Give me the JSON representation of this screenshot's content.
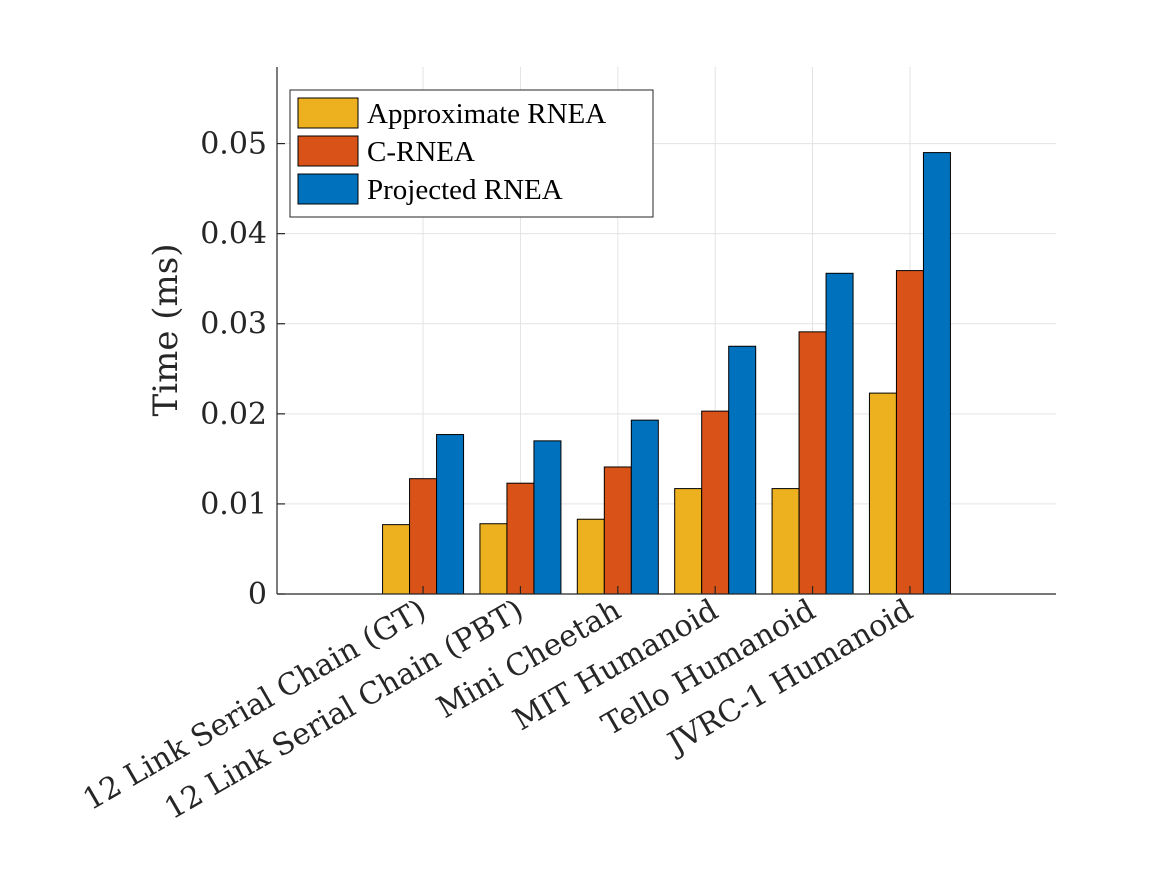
{
  "chart_data": {
    "type": "bar",
    "title": "",
    "xlabel": "",
    "ylabel": "Time (ms)",
    "ylim": [
      0,
      0.0585
    ],
    "yticks": [
      0,
      0.01,
      0.02,
      0.03,
      0.04,
      0.05
    ],
    "ytick_labels": [
      "0",
      "0.01",
      "0.02",
      "0.03",
      "0.04",
      "0.05"
    ],
    "grid": true,
    "legend_position": "top-left",
    "categories": [
      "12 Link Serial Chain (GT)",
      "12 Link Serial Chain (PBT)",
      "Mini Cheetah",
      "MIT Humanoid",
      "Tello Humanoid",
      "JVRC-1 Humanoid"
    ],
    "series": [
      {
        "name": "Approximate RNEA",
        "color": "#EDB120",
        "values": [
          0.0077,
          0.0078,
          0.0083,
          0.0117,
          0.0117,
          0.0223
        ]
      },
      {
        "name": "C-RNEA",
        "color": "#D95319",
        "values": [
          0.0128,
          0.0123,
          0.0141,
          0.0203,
          0.0291,
          0.0359
        ]
      },
      {
        "name": "Projected RNEA",
        "color": "#0072BD",
        "values": [
          0.0177,
          0.017,
          0.0193,
          0.0275,
          0.0356,
          0.049
        ]
      }
    ]
  }
}
